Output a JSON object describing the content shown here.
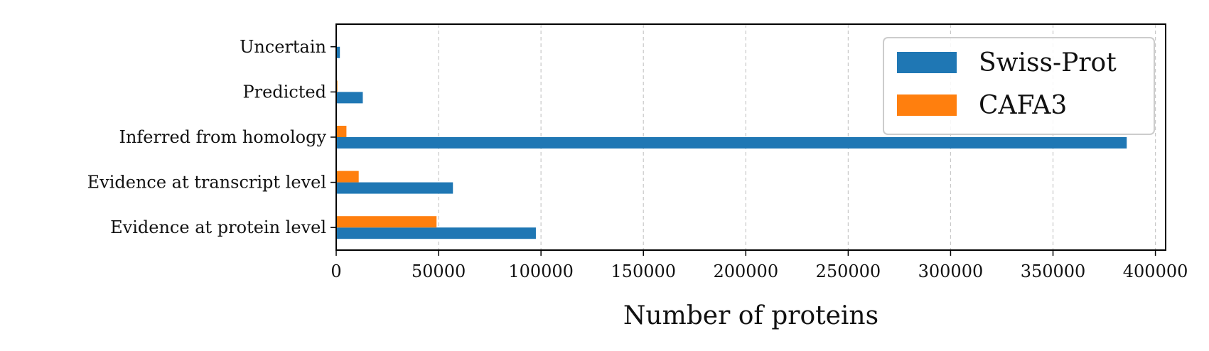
{
  "chart_data": {
    "type": "bar",
    "orientation": "horizontal",
    "categories": [
      "Evidence at protein level",
      "Evidence at transcript level",
      "Inferred from homology",
      "Predicted",
      "Uncertain"
    ],
    "series": [
      {
        "name": "Swiss-Prot",
        "color": "#1f77b4",
        "values": [
          97500,
          57000,
          386000,
          13000,
          1800
        ]
      },
      {
        "name": "CAFA3",
        "color": "#ff7f0e",
        "values": [
          49000,
          11000,
          5000,
          600,
          100
        ]
      }
    ],
    "xlabel": "Number of proteins",
    "ylabel": "",
    "xlim": [
      0,
      405000
    ],
    "xticks": [
      0,
      50000,
      100000,
      150000,
      200000,
      250000,
      300000,
      350000,
      400000
    ],
    "xtick_labels": [
      "0",
      "50000",
      "100000",
      "150000",
      "200000",
      "250000",
      "300000",
      "350000",
      "400000"
    ],
    "grid": "x-dashed",
    "legend": "top-right"
  }
}
